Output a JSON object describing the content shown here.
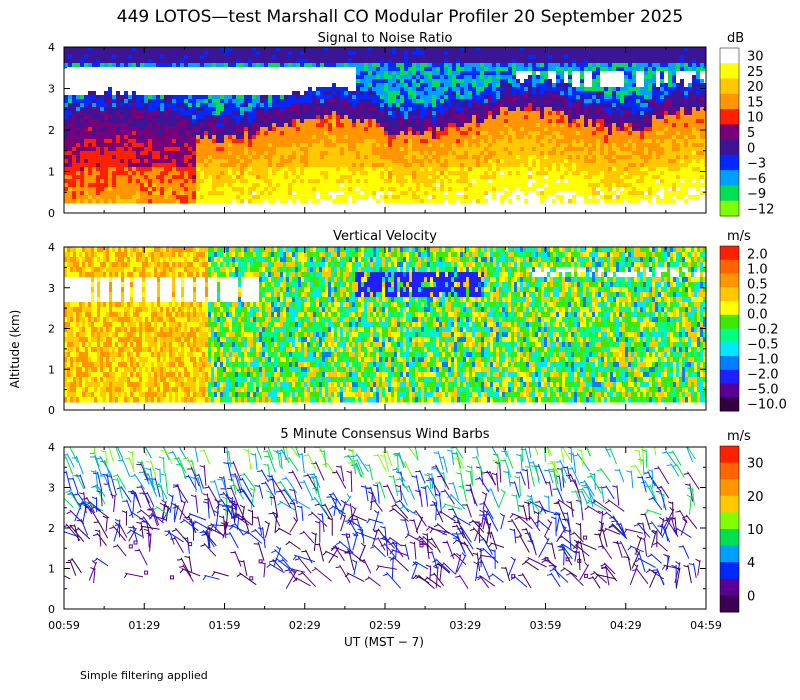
{
  "figure": {
    "title": "449 LOTOS—test Marshall CO Modular Profiler 20 September 2025",
    "footer": "Simple filtering applied",
    "ylabel": "Altitude (km)",
    "xlabel": "UT  (MST − 7)",
    "x_ticks": [
      "00:59",
      "01:29",
      "01:59",
      "02:29",
      "02:59",
      "03:29",
      "03:59",
      "04:29",
      "04:59"
    ],
    "y_ticks": [
      "0",
      "1",
      "2",
      "3",
      "4"
    ]
  },
  "chart_data": [
    {
      "type": "heatmap",
      "title": "Signal to Noise Ratio",
      "unit": "dB",
      "x_range": [
        "00:59",
        "04:59"
      ],
      "ylim": [
        0,
        4
      ],
      "colorbar_ticks": [
        "30",
        "25",
        "20",
        "15",
        "10",
        "5",
        "0",
        "−3",
        "−6",
        "−9",
        "−12"
      ],
      "colorbar_colors": [
        "#ffffff",
        "#ffff00",
        "#ffc800",
        "#ff9600",
        "#ff2000",
        "#780078",
        "#3c1496",
        "#0028ff",
        "#00a0ff",
        "#00e050",
        "#80ff00"
      ]
    },
    {
      "type": "heatmap",
      "title": "Vertical Velocity",
      "unit": "m/s",
      "x_range": [
        "00:59",
        "04:59"
      ],
      "ylim": [
        0,
        4
      ],
      "colorbar_ticks": [
        "2.0",
        "1.0",
        "0.5",
        "0.2",
        "0.0",
        "−0.2",
        "−0.5",
        "−1.0",
        "−2.0",
        "−5.0",
        "−10.0"
      ],
      "colorbar_colors": [
        "#ff2000",
        "#ff6400",
        "#ff9600",
        "#ffc800",
        "#ffff00",
        "#40e800",
        "#00ff80",
        "#00e8ff",
        "#0080ff",
        "#2020ff",
        "#5a0096",
        "#300040"
      ]
    },
    {
      "type": "scatter",
      "title": "5 Minute Consensus Wind Barbs",
      "unit": "m/s",
      "x_range": [
        "00:59",
        "04:59"
      ],
      "ylim": [
        0,
        4
      ],
      "colorbar_ticks": [
        "30",
        "20",
        "10",
        "4",
        "0"
      ],
      "colorbar_colors": [
        "#ff2000",
        "#ff6400",
        "#ff9600",
        "#ffc800",
        "#80ff00",
        "#00e050",
        "#00a0ff",
        "#0028ff",
        "#5a0096",
        "#3c0050"
      ]
    }
  ]
}
